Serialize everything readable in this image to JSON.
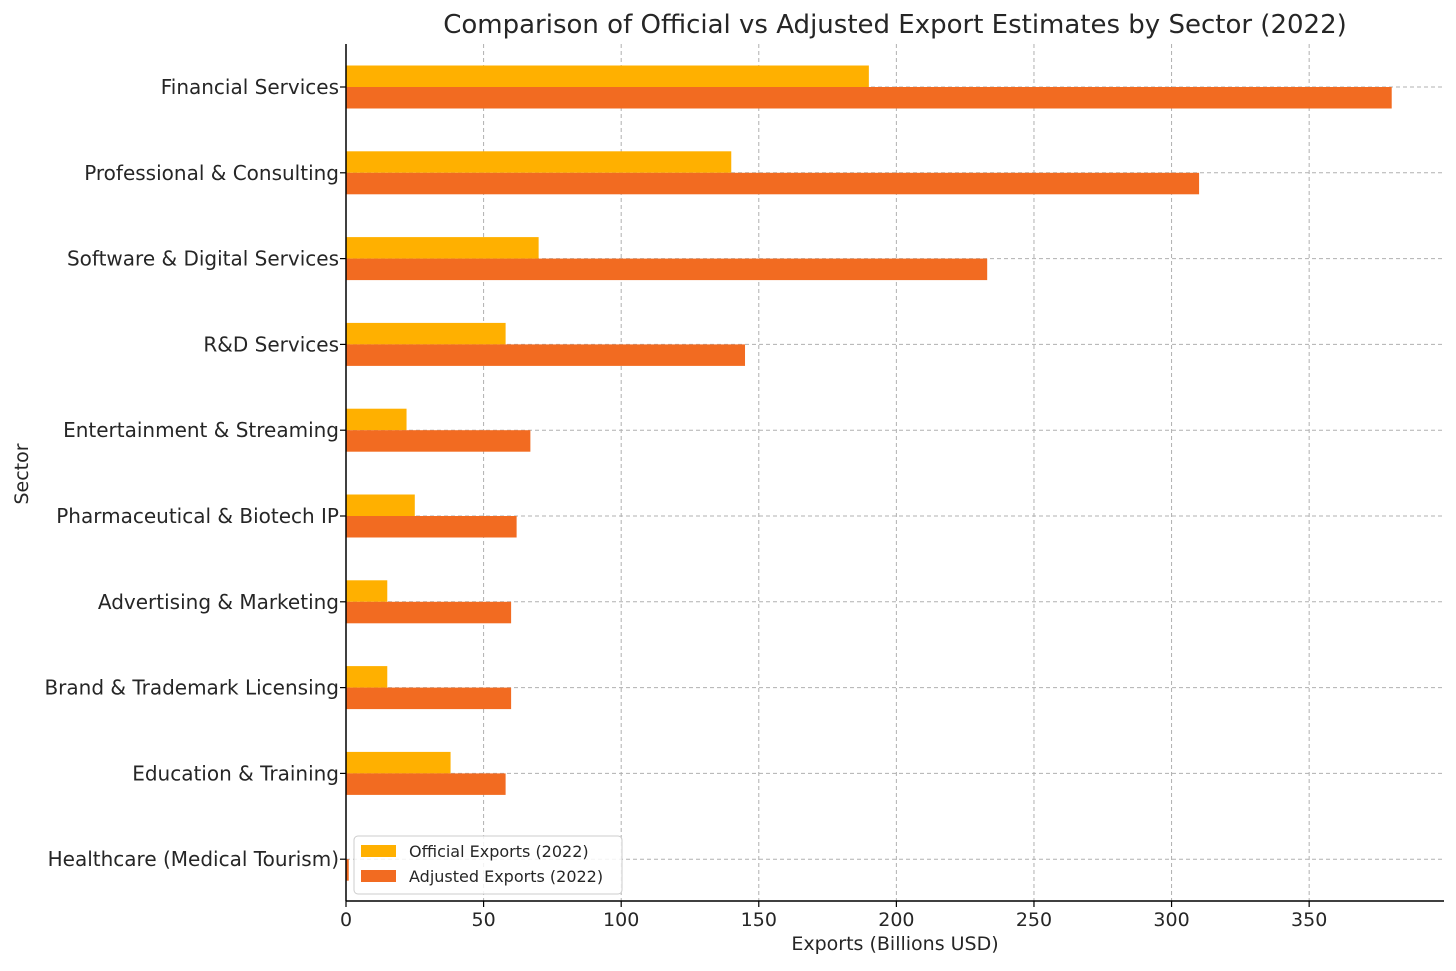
{
  "chart_data": {
    "type": "bar",
    "orientation": "horizontal",
    "title": "Comparison of Official vs Adjusted Export Estimates by Sector (2022)",
    "xlabel": "Exports (Billions USD)",
    "ylabel": "Sector",
    "xlim": [
      0,
      399
    ],
    "xticks": [
      0,
      50,
      100,
      150,
      200,
      250,
      300,
      350
    ],
    "grid": true,
    "legend_position": "lower-left",
    "categories": [
      "Financial Services",
      "Professional & Consulting",
      "Software & Digital Services",
      "R&D Services",
      "Entertainment & Streaming",
      "Pharmaceutical & Biotech IP",
      "Advertising & Marketing",
      "Brand & Trademark Licensing",
      "Education & Training",
      "Healthcare (Medical Tourism)"
    ],
    "series": [
      {
        "name": "Official Exports (2022)",
        "color": "#FFB000",
        "values": [
          190,
          140,
          70,
          58,
          22,
          25,
          15,
          15,
          38,
          0
        ]
      },
      {
        "name": "Adjusted Exports (2022)",
        "color": "#F26B21",
        "values": [
          380,
          310,
          233,
          145,
          67,
          62,
          60,
          60,
          58,
          1
        ]
      }
    ]
  }
}
